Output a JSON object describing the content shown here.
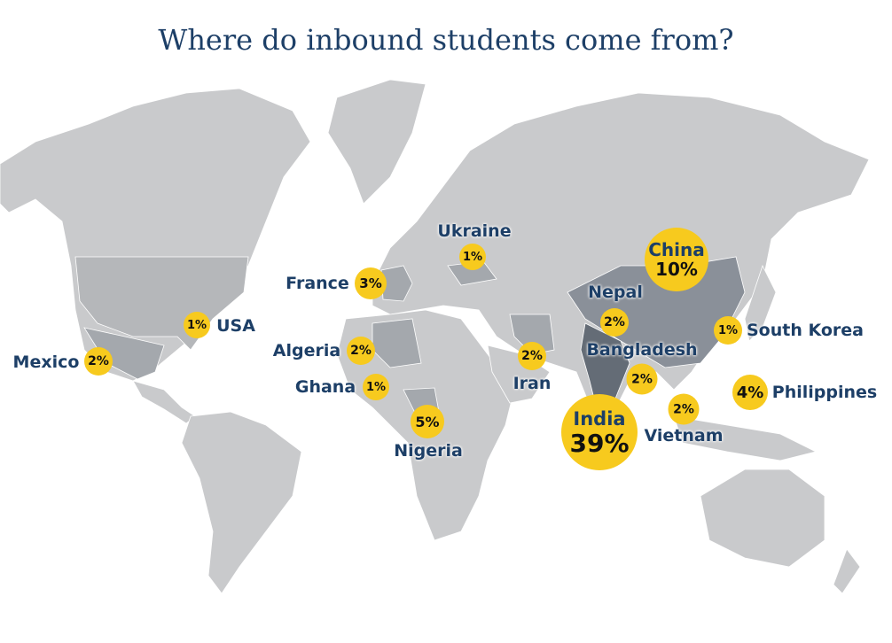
{
  "title": "Where do inbound students come from?",
  "colors": {
    "land": "#c9cacc",
    "highlight": "#a4a8ad",
    "highlight_dark": "#8a9099",
    "india": "#646c76",
    "bubble": "#f7ca1e",
    "label": "#1d3f67"
  },
  "countries": [
    {
      "name": "Ukraine",
      "value": "1%"
    },
    {
      "name": "France",
      "value": "3%"
    },
    {
      "name": "USA",
      "value": "1%"
    },
    {
      "name": "Mexico",
      "value": "2%"
    },
    {
      "name": "Algeria",
      "value": "2%"
    },
    {
      "name": "Ghana",
      "value": "1%"
    },
    {
      "name": "Nigeria",
      "value": "5%"
    },
    {
      "name": "Iran",
      "value": "2%"
    },
    {
      "name": "China",
      "value": "10%"
    },
    {
      "name": "Nepal",
      "value": "2%"
    },
    {
      "name": "Bangladesh",
      "value": "2%"
    },
    {
      "name": "Vietnam",
      "value": "2%"
    },
    {
      "name": "South Korea",
      "value": "1%"
    },
    {
      "name": "Philippines",
      "value": "4%"
    },
    {
      "name": "India",
      "value": "39%"
    }
  ]
}
